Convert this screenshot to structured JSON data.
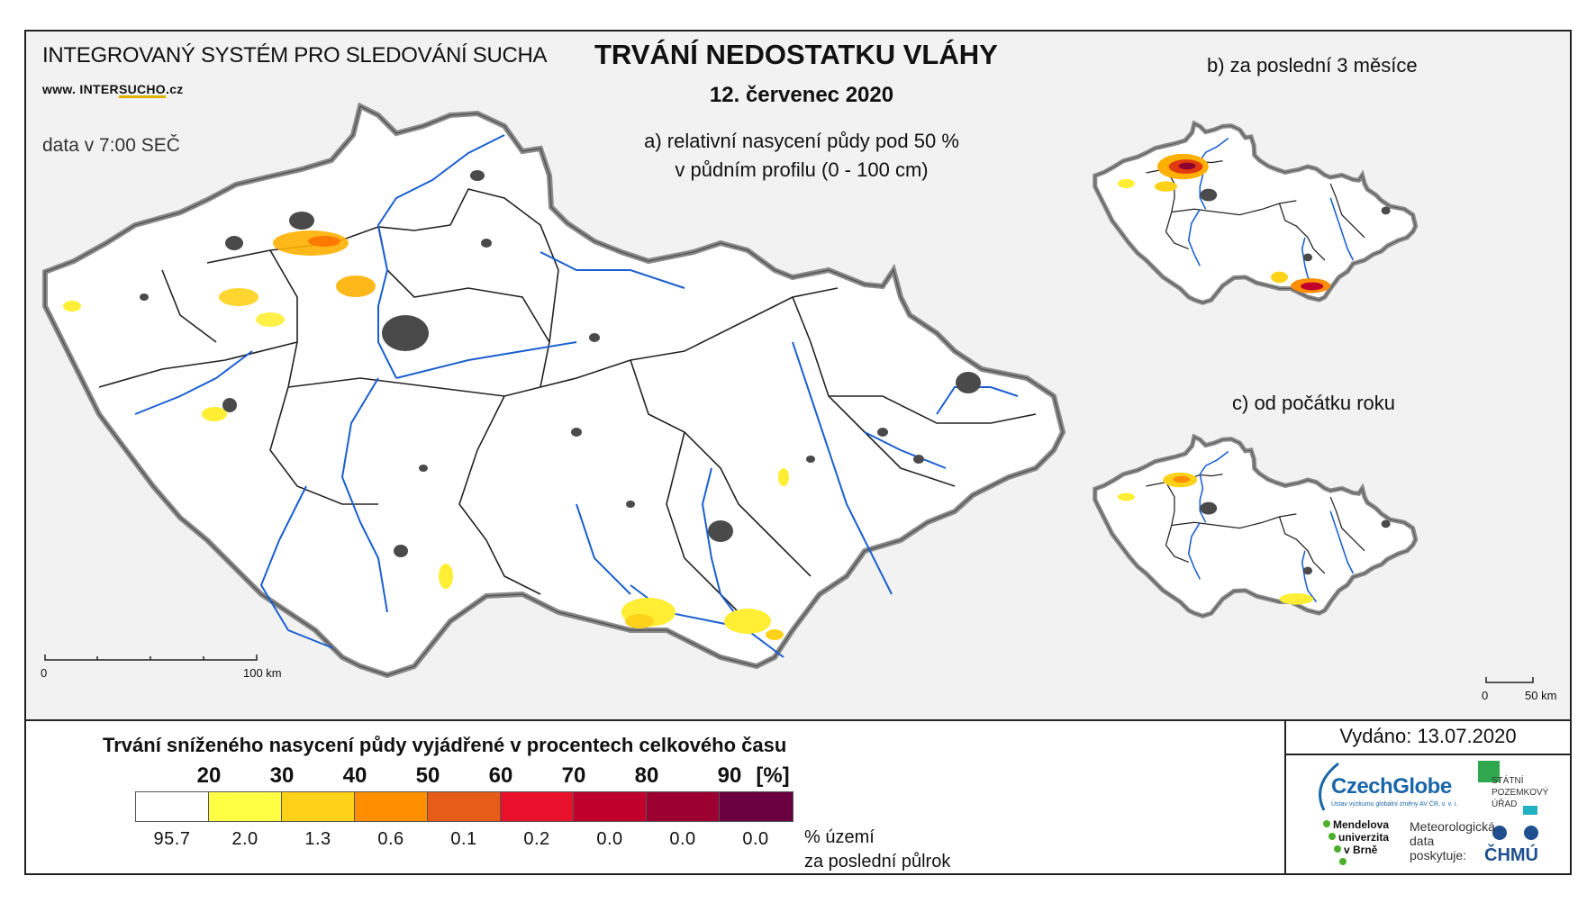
{
  "header": {
    "system_title": "INTEGROVANÝ SYSTÉM PRO SLEDOVÁNÍ SUCHA",
    "website_prefix": "www. INTER",
    "website_mid": "SUCHO",
    "website_suffix": ".cz",
    "data_time": "data v 7:00 SEČ",
    "main_title": "TRVÁNÍ NEDOSTATKU VLÁHY",
    "date": "12. červenec 2020"
  },
  "panels": {
    "a_line1": "a) relativní nasycení půdy pod 50 %",
    "a_line2": "v půdním profilu (0 - 100 cm)",
    "b": "b) za poslední 3 měsíce",
    "c": "c) od počátku roku"
  },
  "scalebars": {
    "main_start": "0",
    "main_end": "100 km",
    "small_start": "0",
    "small_end": "50 km"
  },
  "legend": {
    "title": "Trvání sníženého nasycení půdy vyjádřené v procentech celkového času",
    "thresholds": [
      "20",
      "30",
      "40",
      "50",
      "60",
      "70",
      "80",
      "90",
      "[%]"
    ],
    "colors": [
      "#ffffff",
      "#ffff44",
      "#ffd21a",
      "#ff8f00",
      "#e85c1a",
      "#e8102a",
      "#c0002a",
      "#9c0030",
      "#6a0040"
    ],
    "percent_area": [
      "95.7",
      "2.0",
      "1.3",
      "0.6",
      "0.1",
      "0.2",
      "0.0",
      "0.0",
      "0.0"
    ],
    "note_line1": "% území",
    "note_line2": "za poslední půlrok"
  },
  "footer": {
    "issued": "Vydáno: 13.07.2020",
    "czechglobe": "CzechGlobe",
    "czechglobe_sub": "Ústav výzkumu globální změny AV ČR, v. v. i.",
    "spu_line1": "STÁTNÍ",
    "spu_line2": "POZEMKOVÝ",
    "spu_line3": "ÚŘAD",
    "mendel_line1": "Mendelova",
    "mendel_line2": "univerzita",
    "mendel_line3": "v Brně",
    "meteo_line1": "Meteorologická",
    "meteo_line2": "data",
    "meteo_line3": "poskytuje:",
    "chmu": "ČHMÚ"
  },
  "map_colors": {
    "border": "#555555",
    "regions": "#222222",
    "rivers": "#1a5fd0",
    "urban": "#4a4a4a",
    "drought_low": "#ffee33",
    "drought_mid": "#ffb000",
    "drought_high": "#e23a10",
    "drought_extreme": "#8b0030"
  }
}
